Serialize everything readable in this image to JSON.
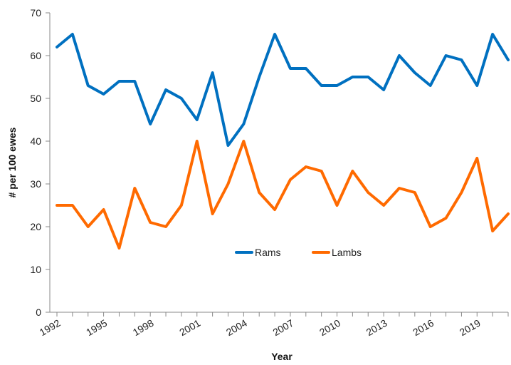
{
  "chart_data": {
    "type": "line",
    "title": "",
    "xlabel": "Year",
    "ylabel": "# per 100 ewes",
    "ylim": [
      0,
      70
    ],
    "yticks": [
      0,
      10,
      20,
      30,
      40,
      50,
      60,
      70
    ],
    "xticks": [
      1992,
      1995,
      1998,
      2001,
      2004,
      2007,
      2010,
      2013,
      2016,
      2019
    ],
    "x": [
      1992,
      1993,
      1994,
      1995,
      1996,
      1997,
      1998,
      1999,
      2000,
      2001,
      2002,
      2003,
      2004,
      2005,
      2006,
      2007,
      2008,
      2009,
      2010,
      2011,
      2012,
      2013,
      2014,
      2015,
      2016,
      2017,
      2018,
      2019,
      2020,
      2021
    ],
    "grid": false,
    "legend_position": "center-bottom",
    "series": [
      {
        "name": "Rams",
        "color": "#0070C0",
        "values": [
          62,
          65,
          53,
          51,
          54,
          54,
          44,
          52,
          50,
          45,
          56,
          39,
          44,
          55,
          65,
          57,
          57,
          53,
          53,
          55,
          55,
          52,
          60,
          56,
          53,
          60,
          59,
          53,
          65,
          59
        ]
      },
      {
        "name": "Lambs",
        "color": "#FF6A00",
        "values": [
          25,
          25,
          20,
          24,
          15,
          29,
          21,
          20,
          25,
          40,
          23,
          30,
          40,
          28,
          24,
          31,
          34,
          33,
          25,
          33,
          28,
          25,
          29,
          28,
          20,
          22,
          28,
          36,
          19,
          23
        ]
      }
    ]
  }
}
